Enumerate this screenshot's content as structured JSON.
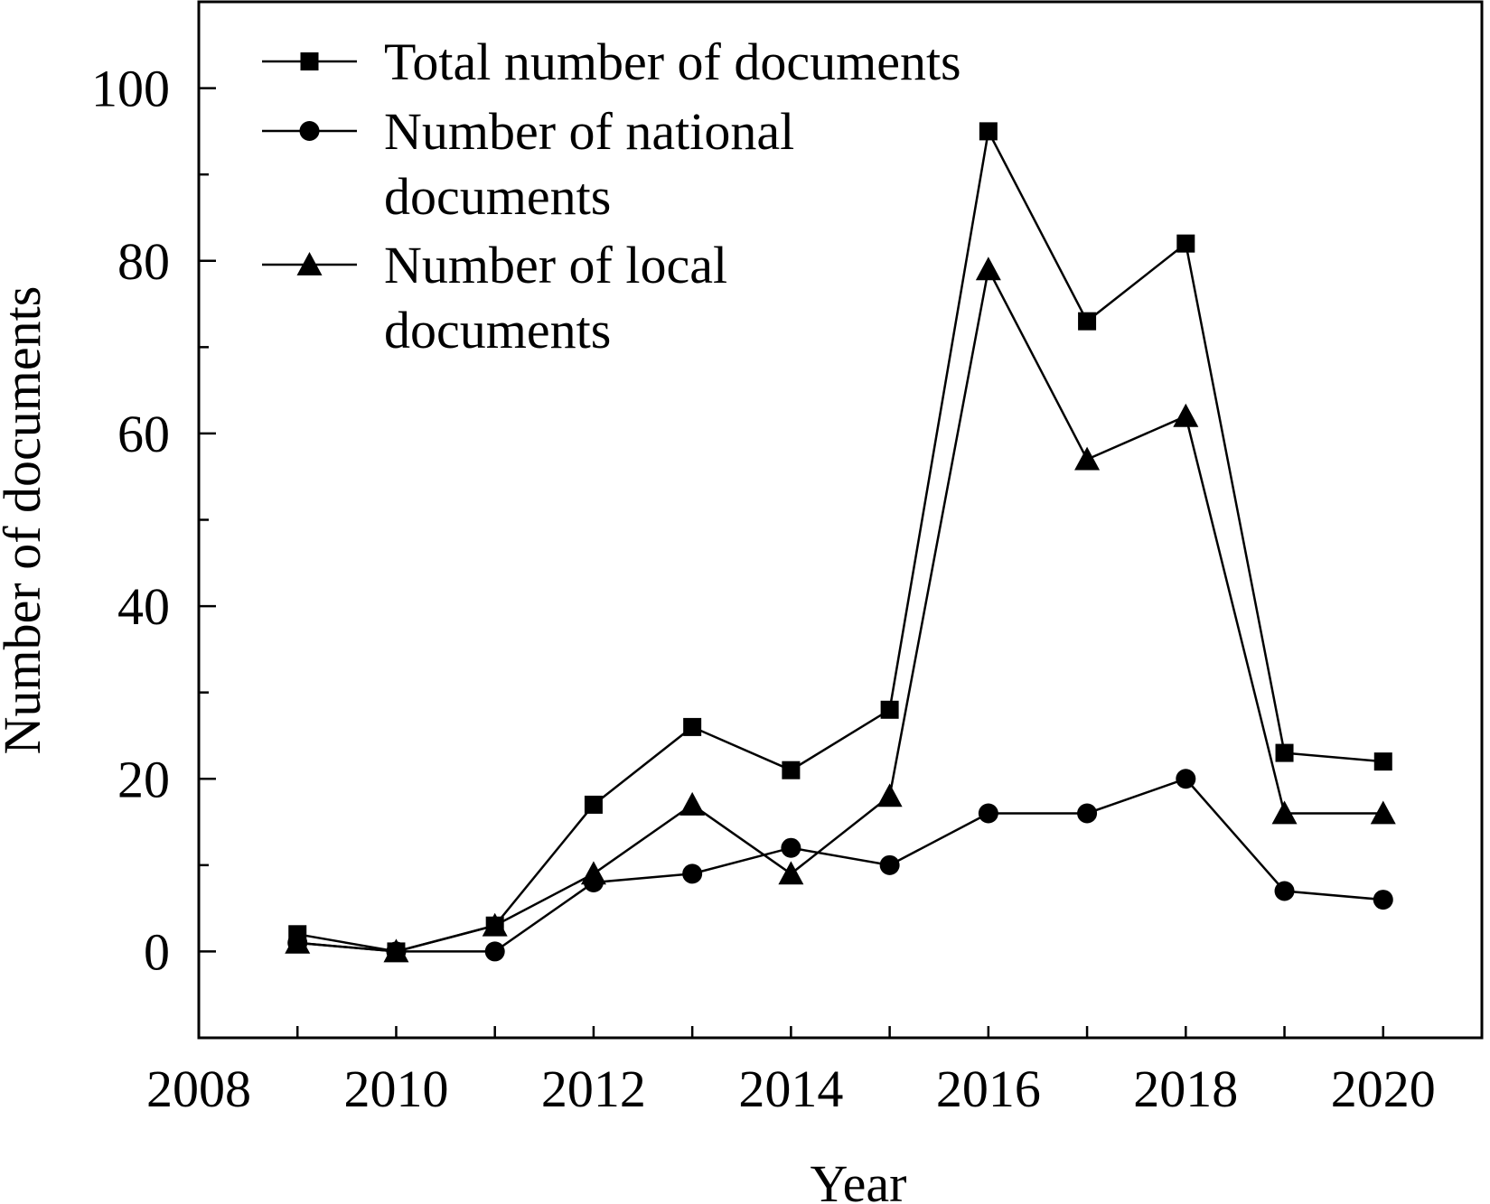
{
  "chart_data": {
    "type": "line",
    "title": "",
    "xlabel": "Year",
    "ylabel": "Number of documents",
    "xlim": [
      2008,
      2021
    ],
    "ylim": [
      -10,
      110
    ],
    "x_ticks": [
      2008,
      2010,
      2012,
      2014,
      2016,
      2018,
      2020
    ],
    "x_minor_ticks": [
      2009,
      2010,
      2011,
      2012,
      2013,
      2014,
      2015,
      2016,
      2017,
      2018,
      2019,
      2020
    ],
    "y_ticks": [
      0,
      20,
      40,
      60,
      80,
      100
    ],
    "y_minor_ticks": [
      10,
      30,
      50,
      70,
      90
    ],
    "grid": false,
    "legend_position": "top-left",
    "x": [
      2009,
      2010,
      2011,
      2012,
      2013,
      2014,
      2015,
      2016,
      2017,
      2018,
      2019,
      2020
    ],
    "series": [
      {
        "name": "Total number of documents",
        "marker": "square",
        "legend_lines": [
          "Total number of documents"
        ],
        "values": [
          2,
          0,
          3,
          17,
          26,
          21,
          28,
          95,
          73,
          82,
          23,
          22
        ]
      },
      {
        "name": "Number of national documents",
        "marker": "circle",
        "legend_lines": [
          "Number of national",
          "documents"
        ],
        "values": [
          1,
          0,
          0,
          8,
          9,
          12,
          10,
          16,
          16,
          20,
          7,
          6
        ]
      },
      {
        "name": "Number of local documents",
        "marker": "triangle",
        "legend_lines": [
          "Number of local",
          "documents"
        ],
        "values": [
          1,
          0,
          3,
          9,
          17,
          9,
          18,
          79,
          57,
          62,
          16,
          16
        ]
      }
    ],
    "colors": {
      "line": "#000000",
      "marker": "#000000",
      "axis": "#000000"
    }
  }
}
